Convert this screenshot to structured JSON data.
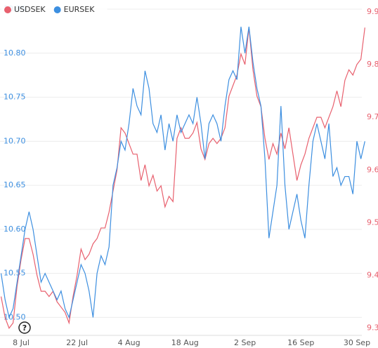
{
  "chart_data": {
    "type": "line",
    "categories": [
      null,
      null,
      null,
      null,
      null,
      "8 Jul",
      null,
      null,
      null,
      null,
      null,
      null,
      null,
      null,
      null,
      null,
      null,
      null,
      null,
      "22 Jul",
      null,
      null,
      null,
      null,
      null,
      null,
      null,
      null,
      null,
      null,
      null,
      null,
      "4 Aug",
      null,
      null,
      null,
      null,
      null,
      null,
      null,
      null,
      null,
      null,
      null,
      null,
      null,
      "18 Aug",
      null,
      null,
      null,
      null,
      null,
      null,
      null,
      null,
      null,
      null,
      null,
      null,
      null,
      null,
      "2 Sep",
      null,
      null,
      null,
      null,
      null,
      null,
      null,
      null,
      null,
      null,
      null,
      null,
      null,
      "16 Sep",
      null,
      null,
      null,
      null,
      null,
      null,
      null,
      null,
      null,
      null,
      null,
      null,
      null,
      "30 Sep",
      null,
      null
    ],
    "series": [
      {
        "name": "USDSEK",
        "color": "#e8606e",
        "axis": "y2",
        "values": [
          9.36,
          9.32,
          9.3,
          9.31,
          9.38,
          9.43,
          9.47,
          9.47,
          9.44,
          9.4,
          9.37,
          9.37,
          9.36,
          9.37,
          9.35,
          9.34,
          9.33,
          9.31,
          9.36,
          9.4,
          9.45,
          9.43,
          9.44,
          9.46,
          9.47,
          9.49,
          9.49,
          9.52,
          9.56,
          9.6,
          9.68,
          9.67,
          9.65,
          9.63,
          9.63,
          9.58,
          9.61,
          9.57,
          9.59,
          9.56,
          9.57,
          9.53,
          9.55,
          9.54,
          9.66,
          9.68,
          9.66,
          9.66,
          9.67,
          9.69,
          9.64,
          9.62,
          9.65,
          9.66,
          9.65,
          9.66,
          9.68,
          9.74,
          9.76,
          9.78,
          9.82,
          9.8,
          9.87,
          9.79,
          9.74,
          9.72,
          9.66,
          9.62,
          9.65,
          9.63,
          9.67,
          9.64,
          9.68,
          9.63,
          9.58,
          9.61,
          9.63,
          9.66,
          9.68,
          9.7,
          9.7,
          9.68,
          9.7,
          9.72,
          9.75,
          9.72,
          9.77,
          9.79,
          9.78,
          9.8,
          9.81,
          9.87
        ]
      },
      {
        "name": "EURSEK",
        "color": "#3d8fe0",
        "axis": "y",
        "values": [
          10.55,
          10.52,
          10.5,
          10.51,
          10.54,
          10.57,
          10.6,
          10.62,
          10.6,
          10.57,
          10.54,
          10.55,
          10.54,
          10.53,
          10.52,
          10.53,
          10.51,
          10.5,
          10.52,
          10.54,
          10.56,
          10.55,
          10.53,
          10.5,
          10.55,
          10.57,
          10.56,
          10.58,
          10.65,
          10.67,
          10.7,
          10.69,
          10.72,
          10.76,
          10.74,
          10.73,
          10.78,
          10.76,
          10.72,
          10.71,
          10.73,
          10.69,
          10.72,
          10.7,
          10.73,
          10.71,
          10.72,
          10.73,
          10.72,
          10.75,
          10.72,
          10.68,
          10.72,
          10.73,
          10.72,
          10.7,
          10.74,
          10.77,
          10.78,
          10.77,
          10.83,
          10.8,
          10.83,
          10.79,
          10.76,
          10.74,
          10.68,
          10.59,
          10.62,
          10.65,
          10.74,
          10.65,
          10.6,
          10.62,
          10.64,
          10.61,
          10.59,
          10.65,
          10.7,
          10.72,
          10.7,
          10.68,
          10.72,
          10.66,
          10.67,
          10.65,
          10.66,
          10.66,
          10.64,
          10.7,
          10.68,
          10.7
        ]
      }
    ],
    "ylim": [
      10.486,
      10.85
    ],
    "yticks": [
      {
        "value": 10.5,
        "label": "10.50"
      },
      10.55,
      {
        "value": 10.6,
        "label": "10.60"
      },
      10.65,
      {
        "value": 10.7,
        "label": "10.70"
      },
      10.75,
      {
        "value": 10.8,
        "label": "10.80"
      },
      10.85
    ],
    "y2lim": [
      9.297,
      9.905
    ],
    "y2ticks": [
      9.3,
      9.4,
      9.5,
      9.6,
      9.7,
      9.8,
      9.9
    ],
    "grid": true,
    "legend": "top-left",
    "badge": "?"
  }
}
